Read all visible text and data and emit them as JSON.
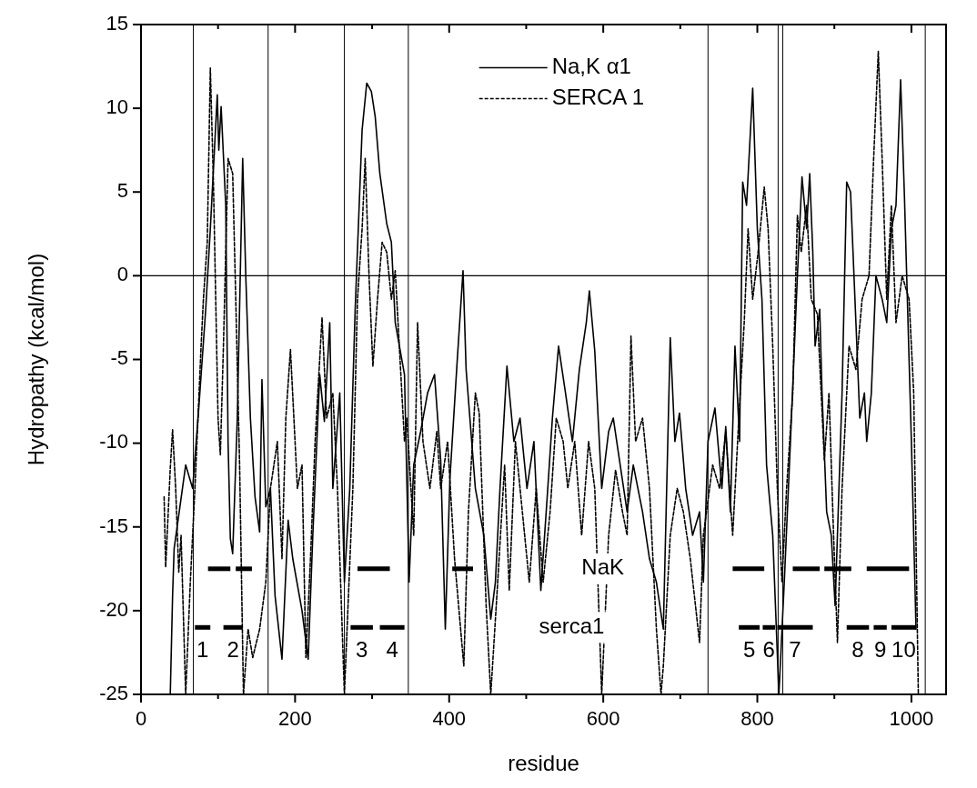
{
  "chart_data": {
    "type": "line",
    "xlabel": "residue",
    "ylabel": "Hydropathy (kcal/mol)",
    "xlim": [
      0,
      1045
    ],
    "ylim": [
      -25,
      15
    ],
    "xticks": [
      0,
      {
        "value": 100,
        "label": null
      },
      200,
      {
        "value": 300,
        "label": null
      },
      400,
      {
        "value": 500,
        "label": null
      },
      600,
      {
        "value": 700,
        "label": null
      },
      800,
      {
        "value": 900,
        "label": null
      },
      1000
    ],
    "yticks": [
      -25,
      -20,
      -15,
      -10,
      -5,
      0,
      5,
      10,
      15
    ],
    "grid": false,
    "legend": "top",
    "series": [
      {
        "name": "Na,K α1",
        "color": "#000000",
        "line_style": "solid",
        "x": [
          38,
          41,
          43,
          58,
          67,
          75,
          84,
          90,
          99,
          101,
          104,
          110,
          113,
          116,
          119,
          125,
          132,
          136,
          142,
          148,
          154,
          157,
          162,
          168,
          174,
          183,
          191,
          197,
          209,
          217,
          223,
          232,
          238,
          245,
          249,
          258,
          264,
          271,
          278,
          287,
          293,
          299,
          304,
          310,
          319,
          325,
          330,
          342,
          348,
          354,
          363,
          372,
          381,
          389,
          395,
          401,
          410,
          418,
          422,
          434,
          445,
          454,
          460,
          466,
          475,
          484,
          492,
          501,
          510,
          519,
          528,
          534,
          542,
          551,
          560,
          569,
          578,
          582,
          589,
          598,
          607,
          613,
          622,
          631,
          639,
          651,
          660,
          669,
          678,
          687,
          693,
          699,
          707,
          716,
          725,
          730,
          736,
          745,
          754,
          759,
          765,
          771,
          777,
          781,
          786,
          794,
          800,
          806,
          812,
          820,
          828,
          835,
          843,
          852,
          858,
          864,
          868,
          872,
          875,
          881,
          884,
          890,
          896,
          901,
          910,
          916,
          921,
          928,
          933,
          939,
          942,
          948,
          954,
          962,
          968,
          974,
          980,
          986,
          991,
          1000,
          1006
        ],
        "values": [
          -25,
          -19.1,
          -16.3,
          -11.3,
          -12.7,
          -7.9,
          -2,
          2.8,
          10.8,
          7.5,
          10.1,
          4.2,
          -9.9,
          -15.7,
          -16.6,
          -8.5,
          7,
          0,
          -8.5,
          -13.2,
          -15.3,
          -6.2,
          -13.8,
          -12.7,
          -19.1,
          -22.9,
          -14.6,
          -16.9,
          -20,
          -22.9,
          -15.5,
          -5.9,
          -8.7,
          -2.8,
          -12.7,
          -7,
          -18.3,
          -12.7,
          -2,
          8.7,
          11.5,
          11,
          9.5,
          6.1,
          3.1,
          2,
          -2.8,
          -5.9,
          -18.3,
          -11.3,
          -9.3,
          -7,
          -5.9,
          -11,
          -21.1,
          -12.1,
          -5.4,
          0.3,
          -5.6,
          -12.7,
          -15.5,
          -20.5,
          -18.3,
          -12.7,
          -5.4,
          -9.9,
          -8.5,
          -12.7,
          -9.9,
          -18.8,
          -12.7,
          -8.5,
          -4.2,
          -7,
          -9.9,
          -5.6,
          -2.8,
          -0.9,
          -4.5,
          -12.7,
          -9.3,
          -8.5,
          -11.3,
          -14.1,
          -11.3,
          -14.1,
          -16.9,
          -18.3,
          -21.1,
          -3.7,
          -9.9,
          -8.2,
          -12.7,
          -15.5,
          -14.1,
          -18.3,
          -9.9,
          -7.9,
          -12.7,
          -9,
          -14.1,
          -4.2,
          -9.9,
          5.6,
          4.2,
          11.2,
          2.8,
          -1.4,
          -11.3,
          -15.5,
          -25,
          -18.3,
          -9.9,
          0,
          5.9,
          2.8,
          6.1,
          1.4,
          -4.2,
          -2,
          -7,
          -14.1,
          -15.5,
          -19.7,
          -7,
          5.6,
          5,
          -2.8,
          -8.5,
          -7,
          -9.9,
          -7,
          0,
          -1.4,
          -2.8,
          2.8,
          4.2,
          11.7,
          4.7,
          -9.9,
          -21.1
        ]
      },
      {
        "name": "SERCA 1",
        "color": "#000000",
        "line_style": "dashed",
        "x": [
          30,
          32,
          38,
          41,
          45,
          49,
          52,
          58,
          64,
          70,
          78,
          81,
          86,
          90,
          94,
          100,
          103,
          107,
          113,
          119,
          123,
          128,
          133,
          139,
          145,
          154,
          162,
          168,
          177,
          183,
          188,
          194,
          203,
          209,
          214,
          220,
          226,
          235,
          241,
          249,
          255,
          264,
          270,
          275,
          281,
          287,
          291,
          296,
          301,
          307,
          313,
          319,
          325,
          330,
          342,
          345,
          354,
          359,
          366,
          375,
          384,
          389,
          398,
          407,
          419,
          425,
          434,
          439,
          448,
          454,
          463,
          472,
          478,
          486,
          495,
          504,
          513,
          522,
          531,
          539,
          548,
          554,
          563,
          572,
          581,
          589,
          598,
          607,
          616,
          625,
          631,
          636,
          642,
          651,
          660,
          669,
          675,
          678,
          687,
          696,
          704,
          713,
          725,
          730,
          742,
          751,
          759,
          768,
          776,
          783,
          788,
          794,
          801,
          809,
          814,
          820,
          826,
          832,
          838,
          846,
          852,
          857,
          864,
          870,
          878,
          887,
          893,
          899,
          904,
          910,
          919,
          928,
          936,
          945,
          951,
          957,
          962,
          968,
          974,
          980,
          988,
          997,
          1003,
          1009
        ],
        "values": [
          -13.2,
          -17.4,
          -11.5,
          -9.2,
          -12.7,
          -17.7,
          -15.5,
          -25,
          -18.3,
          -12.7,
          -4.2,
          -1.4,
          2,
          12.4,
          5.6,
          -8.5,
          -10.7,
          -4.2,
          7,
          6.1,
          -1.4,
          -11.3,
          -25,
          -21.1,
          -22.8,
          -21.1,
          -18.3,
          -12.7,
          -9.9,
          -16.9,
          -8.5,
          -4.4,
          -12.7,
          -11.3,
          -22.8,
          -16.9,
          -9.9,
          -2.5,
          -8.5,
          -7,
          -12.7,
          -25,
          -18.3,
          -12.7,
          -1.4,
          2.8,
          7,
          0,
          -5.4,
          -1.4,
          2,
          1.4,
          -1.4,
          0.3,
          -9.9,
          -8.5,
          -15.5,
          -2.8,
          -9.9,
          -12.7,
          -9.3,
          -12.7,
          -9.9,
          -16.9,
          -23.3,
          -14.1,
          -7,
          -8.2,
          -19.7,
          -25,
          -18.3,
          -11.3,
          -18.8,
          -9.9,
          -14.1,
          -18.3,
          -12.7,
          -18.3,
          -14.1,
          -8.5,
          -9.9,
          -12.7,
          -9.9,
          -15.5,
          -9.9,
          -12.7,
          -25,
          -15.5,
          -11.6,
          -14.1,
          -15.5,
          -3.6,
          -9.9,
          -8.5,
          -12.7,
          -21.1,
          -25,
          -23.3,
          -15.5,
          -12.7,
          -14.1,
          -16.9,
          -21.9,
          -15.5,
          -11.3,
          -12.7,
          -9.3,
          -15.5,
          -8.5,
          -2.8,
          2.8,
          -1.4,
          1.4,
          5.3,
          2.8,
          -4.2,
          -12.7,
          -18.3,
          -12.7,
          -7,
          3.6,
          1.4,
          4.2,
          -1.4,
          -2.3,
          -11,
          -7,
          -15.5,
          -21.9,
          -12.7,
          -4.2,
          -5.6,
          -1.4,
          0,
          7,
          13.4,
          7,
          -1.4,
          4.2,
          -2.8,
          0,
          -1.4,
          -7,
          -25
        ]
      },
      {
        "color": "#000000",
        "line_style": "solid",
        "x": [
          87,
          116
        ],
        "values": [
          -17.5,
          -17.5
        ]
      },
      {
        "color": "#000000",
        "line_style": "solid",
        "x": [
          123,
          144
        ],
        "values": [
          -17.5,
          -17.5
        ]
      },
      {
        "color": "#000000",
        "line_style": "solid",
        "x": [
          281,
          323
        ],
        "values": [
          -17.5,
          -17.5
        ]
      },
      {
        "color": "#000000",
        "line_style": "solid",
        "x": [
          404,
          431
        ],
        "values": [
          -17.5,
          -17.5
        ]
      },
      {
        "color": "#000000",
        "line_style": "solid",
        "x": [
          768,
          809
        ],
        "values": [
          -17.5,
          -17.5
        ]
      },
      {
        "color": "#000000",
        "line_style": "solid",
        "x": [
          846,
          881
        ],
        "values": [
          -17.5,
          -17.5
        ]
      },
      {
        "color": "#000000",
        "line_style": "solid",
        "x": [
          887,
          922
        ],
        "values": [
          -17.5,
          -17.5
        ]
      },
      {
        "color": "#000000",
        "line_style": "solid",
        "x": [
          942,
          997
        ],
        "values": [
          -17.5,
          -17.5
        ]
      },
      {
        "color": "#000000",
        "line_style": "solid",
        "x": [
          70,
          90
        ],
        "values": [
          -21,
          -21
        ]
      },
      {
        "color": "#000000",
        "line_style": "solid",
        "x": [
          107,
          132
        ],
        "values": [
          -21,
          -21
        ]
      },
      {
        "color": "#000000",
        "line_style": "solid",
        "x": [
          272,
          301
        ],
        "values": [
          -21,
          -21
        ]
      },
      {
        "color": "#000000",
        "line_style": "solid",
        "x": [
          310,
          342
        ],
        "values": [
          -21,
          -21
        ]
      },
      {
        "color": "#000000",
        "line_style": "solid",
        "x": [
          776,
          803
        ],
        "values": [
          -21,
          -21
        ]
      },
      {
        "color": "#000000",
        "line_style": "solid",
        "x": [
          807,
          823
        ],
        "values": [
          -21,
          -21
        ]
      },
      {
        "color": "#000000",
        "line_style": "solid",
        "x": [
          826,
          872
        ],
        "values": [
          -21,
          -21
        ]
      },
      {
        "color": "#000000",
        "line_style": "solid",
        "x": [
          916,
          945
        ],
        "values": [
          -21,
          -21
        ]
      },
      {
        "color": "#000000",
        "line_style": "solid",
        "x": [
          951,
          968
        ],
        "values": [
          -21,
          -21
        ]
      },
      {
        "color": "#000000",
        "line_style": "solid",
        "x": [
          974,
          1006
        ],
        "values": [
          -21,
          -21
        ]
      }
    ],
    "ref_lines": [
      {
        "axis": "y",
        "value": 0
      },
      {
        "axis": "x",
        "value": 68
      },
      {
        "axis": "x",
        "value": 165
      },
      {
        "axis": "x",
        "value": 264
      },
      {
        "axis": "x",
        "value": 347
      },
      {
        "axis": "x",
        "value": 736
      },
      {
        "axis": "x",
        "value": 827
      },
      {
        "axis": "x",
        "value": 833
      },
      {
        "axis": "x",
        "value": 1018
      }
    ],
    "annotations": [
      "1",
      "2",
      "3",
      "4",
      "5",
      "6",
      "7",
      "8",
      "9",
      "10",
      "NaK",
      "serca1"
    ]
  }
}
